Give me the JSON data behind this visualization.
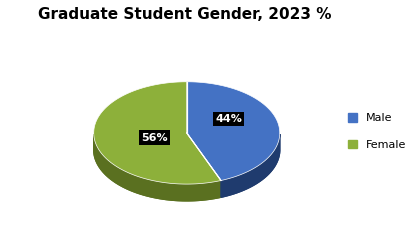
{
  "title": "Graduate Student Gender, 2023 %",
  "title_fontsize": 11,
  "title_fontweight": "bold",
  "slices": [
    44,
    56
  ],
  "labels": [
    "Male",
    "Female"
  ],
  "colors_top": [
    "#4472C4",
    "#8DB03A"
  ],
  "colors_side": [
    "#1F3B6E",
    "#5A7020"
  ],
  "pct_labels": [
    "44%",
    "56%"
  ],
  "start_angle": 90,
  "background_color": "#ffffff",
  "legend_labels": [
    "Male",
    "Female"
  ],
  "legend_colors": [
    "#4472C4",
    "#8DB03A"
  ]
}
